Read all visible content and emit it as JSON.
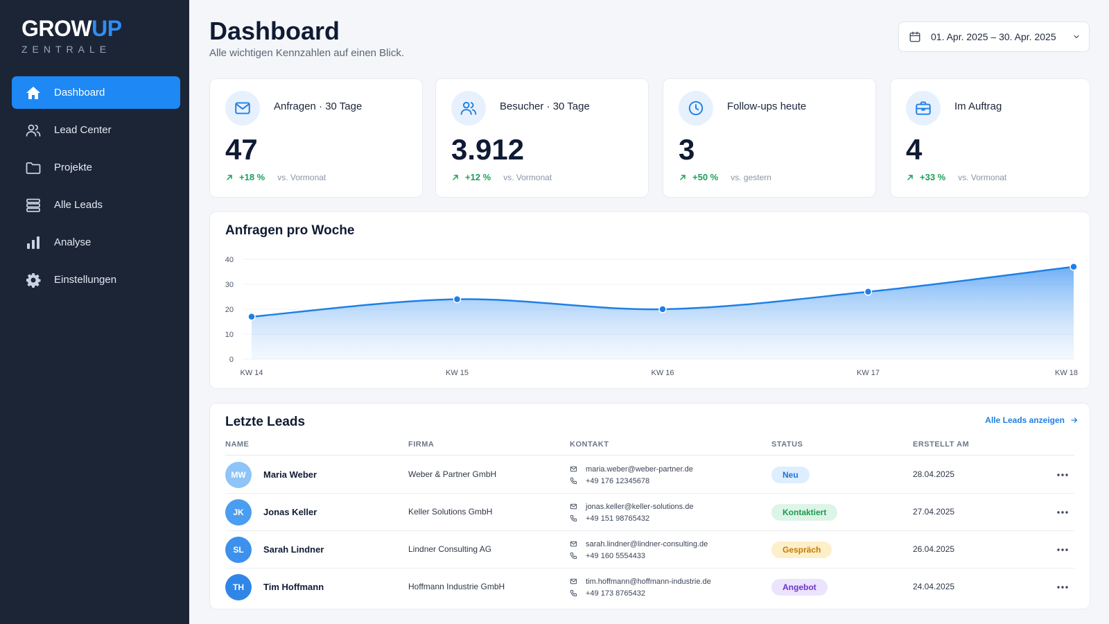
{
  "brand": {
    "part1": "GROW",
    "part2": "UP",
    "subtitle": "ZENTRALE"
  },
  "sidebar": {
    "items": [
      {
        "label": "Dashboard",
        "icon": "home-icon",
        "active": true
      },
      {
        "label": "Lead Center",
        "icon": "users-icon",
        "active": false
      },
      {
        "label": "Projekte",
        "icon": "folder-icon",
        "active": false
      },
      {
        "label": "Alle Leads",
        "icon": "list-icon",
        "active": false
      },
      {
        "label": "Analyse",
        "icon": "bar-chart-icon",
        "active": false
      },
      {
        "label": "Einstellungen",
        "icon": "gear-icon",
        "active": false
      }
    ]
  },
  "header": {
    "title": "Dashboard",
    "subtitle": "Alle wichtigen Kennzahlen auf einen Blick.",
    "date_range": "01. Apr. 2025 – 30. Apr. 2025"
  },
  "kpis": [
    {
      "label": "Anfragen · 30 Tage",
      "value": "47",
      "delta": "+18 %",
      "ref": "vs. Vormonat",
      "icon": "mail-icon"
    },
    {
      "label": "Besucher · 30 Tage",
      "value": "3.912",
      "delta": "+12 %",
      "ref": "vs. Vormonat",
      "icon": "users-icon"
    },
    {
      "label": "Follow-ups heute",
      "value": "3",
      "delta": "+50 %",
      "ref": "vs. gestern",
      "icon": "clock-icon"
    },
    {
      "label": "Im Auftrag",
      "value": "4",
      "delta": "+33 %",
      "ref": "vs. Vormonat",
      "icon": "briefcase-icon"
    }
  ],
  "colors": {
    "accent": "#1e88f5",
    "success": "#1aa05a",
    "sidebar": "#1c2536"
  },
  "chart_data": {
    "type": "area",
    "title": "Anfragen pro Woche",
    "categories": [
      "KW 14",
      "KW 15",
      "KW 16",
      "KW 17",
      "KW 18"
    ],
    "values": [
      17,
      24,
      20,
      27,
      37
    ],
    "ylim": [
      0,
      40
    ],
    "yticks": [
      "0",
      "10",
      "20",
      "30",
      "40"
    ],
    "grid": true
  },
  "leads": {
    "title": "Letzte Leads",
    "view_all": "Alle Leads anzeigen",
    "columns": {
      "name": "NAME",
      "firm": "FIRMA",
      "contact": "KONTAKT",
      "status": "STATUS",
      "created": "ERSTELLT AM"
    },
    "rows": [
      {
        "initials": "MW",
        "name": "Maria Weber",
        "firm": "Weber & Partner GmbH",
        "email": "maria.weber@weber-partner.de",
        "phone": "+49 176 12345678",
        "status": "Neu",
        "date": "28.04.2025",
        "avatar_color": "#8ec4f7",
        "badge_bg": "#ddeefe",
        "badge_fg": "#1a73d9"
      },
      {
        "initials": "JK",
        "name": "Jonas Keller",
        "firm": "Keller Solutions GmbH",
        "email": "jonas.keller@keller-solutions.de",
        "phone": "+49 151 98765432",
        "status": "Kontaktiert",
        "date": "27.04.2025",
        "avatar_color": "#4a9df0",
        "badge_bg": "#dcf5e6",
        "badge_fg": "#1a9a52"
      },
      {
        "initials": "SL",
        "name": "Sarah Lindner",
        "firm": "Lindner Consulting AG",
        "email": "sarah.lindner@lindner-consulting.de",
        "phone": "+49 160 5554433",
        "status": "Gespräch",
        "date": "26.04.2025",
        "avatar_color": "#3d91ec",
        "badge_bg": "#fdefc8",
        "badge_fg": "#c47a07"
      },
      {
        "initials": "TH",
        "name": "Tim Hoffmann",
        "firm": "Hoffmann Industrie GmbH",
        "email": "tim.hoffmann@hoffmann-industrie.de",
        "phone": "+49 173 8765432",
        "status": "Angebot",
        "date": "24.04.2025",
        "avatar_color": "#2f86e6",
        "badge_bg": "#ece3fc",
        "badge_fg": "#6a35c9"
      }
    ]
  }
}
